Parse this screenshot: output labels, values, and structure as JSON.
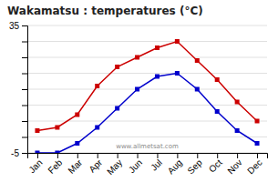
{
  "chart_data": {
    "type": "line",
    "title": "Wakamatsu : temperatures (°C)",
    "categories": [
      "Jan",
      "Feb",
      "Mar",
      "Apr",
      "May",
      "Jun",
      "Jul",
      "Aug",
      "Sep",
      "Oct",
      "Nov",
      "Dec"
    ],
    "series": [
      {
        "color": "#cc0000",
        "marker": "square",
        "line_style": "solid",
        "values": [
          2,
          3,
          7,
          16,
          22,
          25,
          28,
          30,
          24,
          18,
          11,
          5
        ]
      },
      {
        "color": "#0000cc",
        "marker": "square",
        "line_style": "solid",
        "values": [
          -5,
          -5,
          -2,
          3,
          9,
          15,
          19,
          20,
          15,
          8,
          2,
          -2
        ]
      }
    ],
    "ylim": [
      -5,
      35
    ],
    "yticks": [
      -5,
      {
        "value": 0,
        "label": null
      },
      {
        "value": 5,
        "label": null
      },
      {
        "value": 10,
        "label": null
      },
      {
        "value": 15,
        "label": null
      },
      {
        "value": 20,
        "label": null
      },
      {
        "value": 25,
        "label": null
      },
      {
        "value": 30,
        "label": null
      },
      35
    ],
    "grid": true,
    "annotations": [
      "www.allmetsat.com"
    ]
  }
}
